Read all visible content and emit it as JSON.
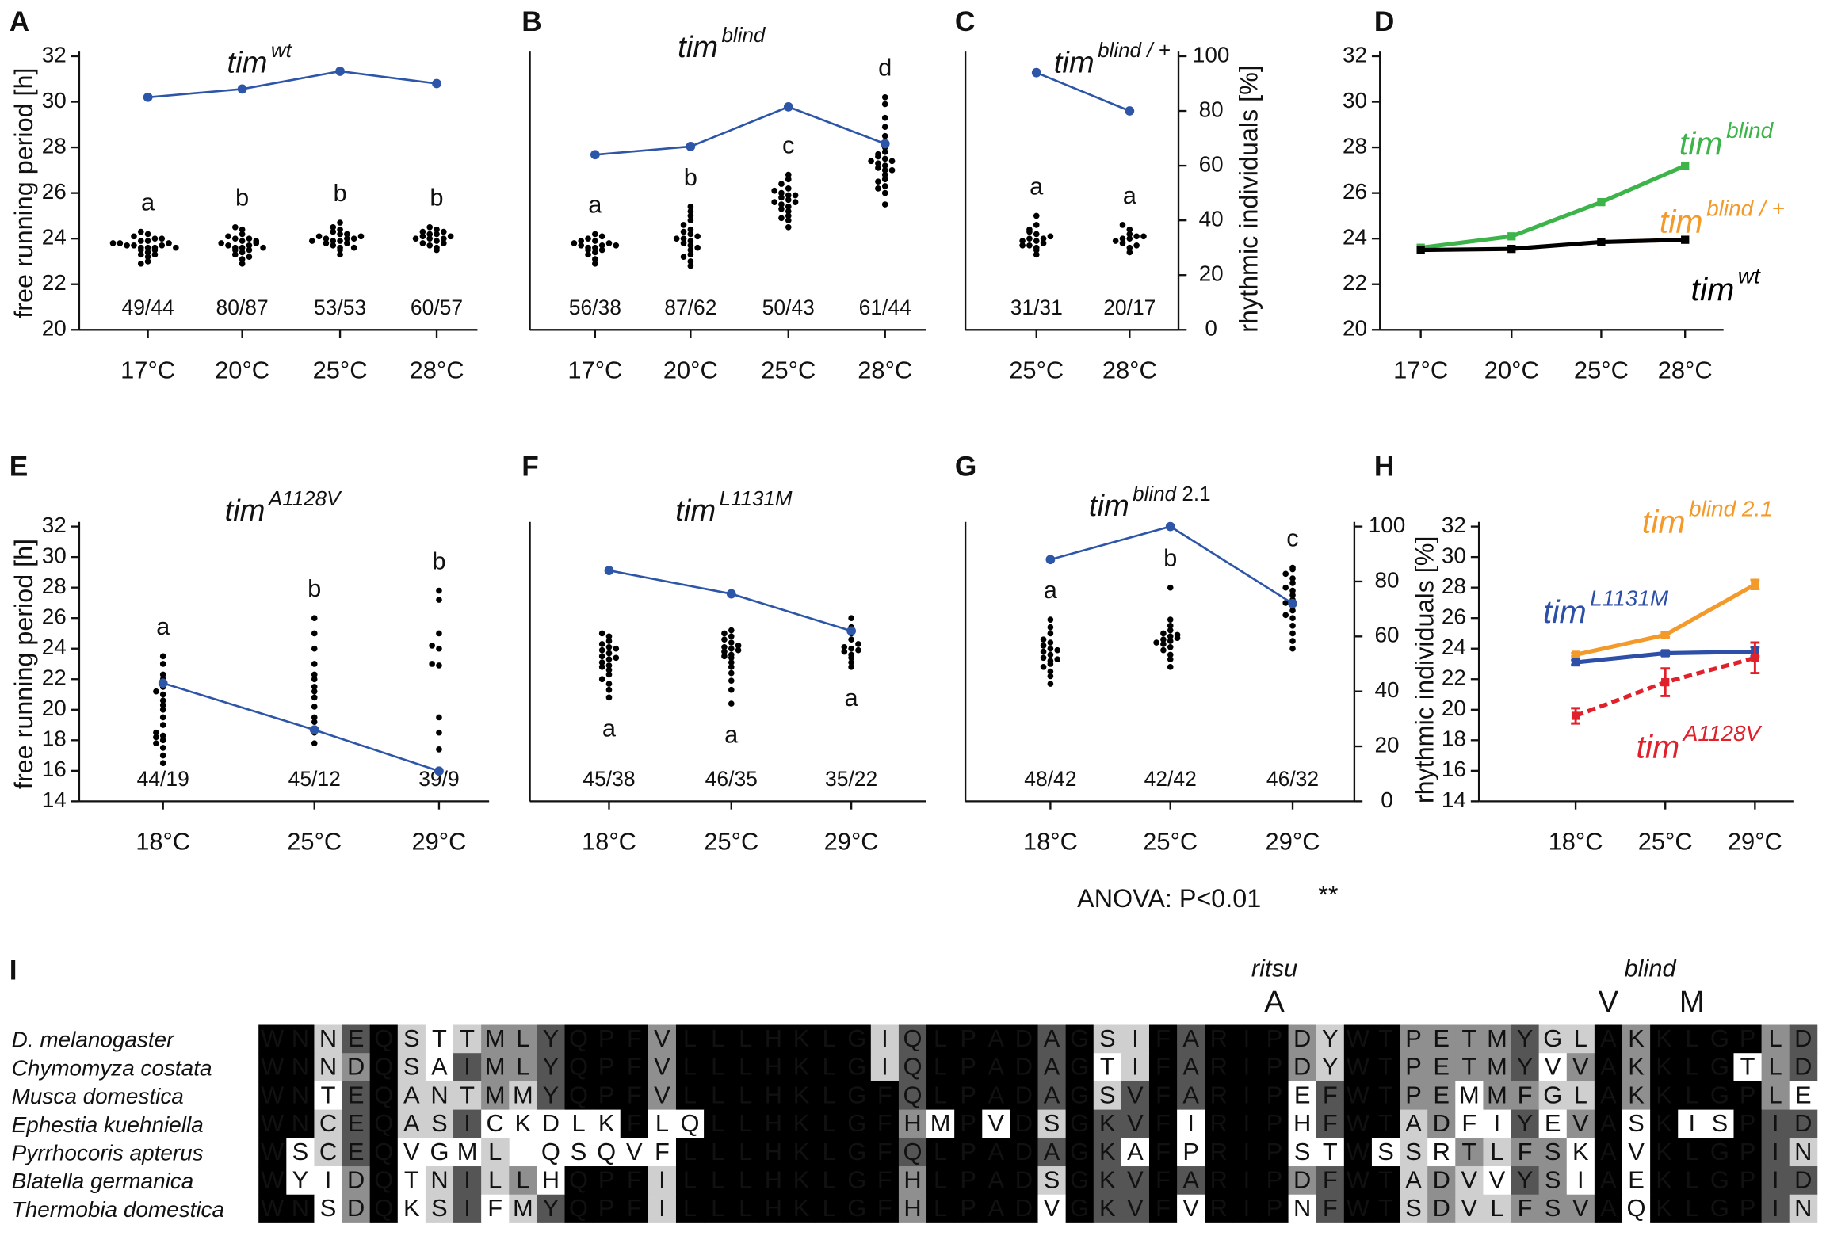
{
  "chart_data": [
    {
      "type": "dotplot",
      "label": "A",
      "title": {
        "base": "tim",
        "sup": "wt"
      },
      "ylabel": "free running period [h]",
      "categories": [
        "17°C",
        "20°C",
        "25°C",
        "28°C"
      ],
      "ylim": [
        20,
        32
      ],
      "yticks": [
        20,
        22,
        24,
        26,
        28,
        30,
        32
      ],
      "y2lim": [
        0,
        100
      ],
      "dot_color": "#000000",
      "letter_color": "#e0202a",
      "groups": [
        [
          23.0,
          23.2,
          23.3,
          23.4,
          23.5,
          23.5,
          23.6,
          23.6,
          23.6,
          23.7,
          23.7,
          23.7,
          23.8,
          23.8,
          23.9,
          23.9,
          24.0,
          24.1,
          24.2,
          24.3,
          22.9,
          23.3,
          23.6,
          23.8,
          24.0
        ],
        [
          22.9,
          23.1,
          23.3,
          23.4,
          23.5,
          23.5,
          23.6,
          23.6,
          23.7,
          23.7,
          23.8,
          23.8,
          23.9,
          24.0,
          24.0,
          24.1,
          24.2,
          24.4,
          24.5,
          23.2,
          23.6,
          23.9
        ],
        [
          23.3,
          23.5,
          23.6,
          23.7,
          23.8,
          23.8,
          23.9,
          23.9,
          24.0,
          24.0,
          24.0,
          24.1,
          24.1,
          24.2,
          24.3,
          24.4,
          24.5,
          24.7,
          23.6,
          23.9,
          24.2
        ],
        [
          23.5,
          23.6,
          23.7,
          23.8,
          23.9,
          24.0,
          24.0,
          24.1,
          24.1,
          24.2,
          24.2,
          24.3,
          24.4,
          24.5,
          23.8,
          24.0,
          24.3
        ]
      ],
      "letters": [
        "a",
        "b",
        "b",
        "b"
      ],
      "counts": [
        "49/44",
        "80/87",
        "53/53",
        "60/57"
      ],
      "rhythmic": {
        "color": "#2d55a8",
        "axis": "y2",
        "values": [
          85,
          88,
          94.5,
          90
        ]
      }
    },
    {
      "type": "dotplot",
      "label": "B",
      "title": {
        "base": "tim",
        "sup": "blind"
      },
      "categories": [
        "17°C",
        "20°C",
        "25°C",
        "28°C"
      ],
      "ylim": [
        20,
        32
      ],
      "y2lim": [
        0,
        100
      ],
      "dot_color": "#000000",
      "letter_color": "#e0202a",
      "groups": [
        [
          22.9,
          23.1,
          23.3,
          23.4,
          23.5,
          23.6,
          23.6,
          23.7,
          23.7,
          23.8,
          23.8,
          23.9,
          24.0,
          24.1,
          24.2,
          23.5,
          23.7,
          23.9
        ],
        [
          22.8,
          23.0,
          23.3,
          23.5,
          23.7,
          23.8,
          23.9,
          24.0,
          24.1,
          24.2,
          24.4,
          24.6,
          24.8,
          25.0,
          25.2,
          23.6,
          24.0,
          24.3,
          23.2,
          25.4
        ],
        [
          24.5,
          24.8,
          25.0,
          25.2,
          25.4,
          25.5,
          25.6,
          25.7,
          25.8,
          25.9,
          26.0,
          26.2,
          26.4,
          26.6,
          26.8,
          25.3,
          25.6,
          25.9,
          26.1,
          24.9
        ],
        [
          25.5,
          26.0,
          26.3,
          26.6,
          26.8,
          27.0,
          27.1,
          27.2,
          27.3,
          27.4,
          27.5,
          27.6,
          27.8,
          28.0,
          28.2,
          28.5,
          28.9,
          29.3,
          29.9,
          30.2,
          26.5,
          27.0,
          27.4,
          27.7,
          26.2
        ]
      ],
      "letters": [
        "a",
        "b",
        "c",
        "d"
      ],
      "counts": [
        "56/38",
        "87/62",
        "50/43",
        "61/44"
      ],
      "rhythmic": {
        "color": "#2d55a8",
        "axis": "y2",
        "values": [
          64,
          67,
          81.5,
          68
        ]
      }
    },
    {
      "type": "dotplot",
      "label": "C",
      "title": {
        "base": "tim",
        "sup": "blind / +"
      },
      "y2label": "rhythmic individuals [%]",
      "categories": [
        "25°C",
        "28°C"
      ],
      "ylim": [
        20,
        32
      ],
      "y2lim": [
        0,
        100
      ],
      "y2ticks": [
        0,
        20,
        40,
        60,
        80,
        100
      ],
      "dot_color": "#000000",
      "letter_color": "#e0202a",
      "groups": [
        [
          23.3,
          23.5,
          23.6,
          23.7,
          23.8,
          23.9,
          24.0,
          24.0,
          24.2,
          24.3,
          24.6,
          25.0,
          23.7,
          23.9,
          24.1,
          24.4
        ],
        [
          23.4,
          23.6,
          23.8,
          24.0,
          24.0,
          24.1,
          24.2,
          24.4,
          24.6,
          23.7,
          23.9,
          24.1
        ]
      ],
      "letters": [
        "a",
        "a"
      ],
      "counts": [
        "31/31",
        "20/17"
      ],
      "rhythmic": {
        "color": "#2d55a8",
        "axis": "y2",
        "values": [
          94,
          80
        ]
      }
    },
    {
      "type": "line",
      "label": "D",
      "categories": [
        "17°C",
        "20°C",
        "25°C",
        "28°C"
      ],
      "ylim": [
        20,
        32
      ],
      "yticks": [
        20,
        22,
        24,
        26,
        28,
        30,
        32
      ],
      "series": [
        {
          "name": "tim",
          "name_sup": "blind",
          "color": "#3cb44a",
          "values": [
            23.6,
            24.1,
            25.6,
            27.2
          ]
        },
        {
          "name": "tim",
          "name_sup": "blind / +",
          "color": "#f39a2a",
          "dash": true,
          "values": [
            null,
            null,
            23.85,
            23.95
          ]
        },
        {
          "name": "tim",
          "name_sup": "wt",
          "color": "#000000",
          "values": [
            23.5,
            23.55,
            23.85,
            23.95
          ]
        }
      ]
    },
    {
      "type": "dotplot",
      "label": "E",
      "title": {
        "base": "tim",
        "sup": "A1128V"
      },
      "ylabel": "free running period [h]",
      "categories": [
        "18°C",
        "25°C",
        "29°C"
      ],
      "ylim": [
        14,
        32
      ],
      "yticks": [
        14,
        16,
        18,
        20,
        22,
        24,
        26,
        28,
        30,
        32
      ],
      "y2lim": [
        0,
        100
      ],
      "dot_color": "#000000",
      "letter_color": "#e0202a",
      "groups": [
        [
          16.5,
          17.0,
          17.5,
          17.8,
          18.0,
          18.2,
          18.3,
          18.5,
          19.0,
          19.5,
          20.0,
          20.3,
          20.6,
          21.0,
          21.2,
          21.5,
          22.0,
          22.3,
          23.0,
          23.5
        ],
        [
          17.8,
          18.5,
          19.2,
          19.5,
          20.2,
          20.8,
          21.2,
          21.5,
          22.0,
          22.3,
          23.0,
          24.0,
          25.0,
          26.0
        ],
        [
          17.4,
          18.5,
          19.5,
          22.9,
          23.0,
          24.0,
          24.2,
          25.0,
          27.2,
          27.8
        ]
      ],
      "letters": [
        "a",
        "b",
        "b"
      ],
      "counts": [
        "44/19",
        "45/12",
        "39/9"
      ],
      "rhythmic": {
        "color": "#2d55a8",
        "axis": "y2",
        "values": [
          43,
          26,
          11
        ]
      }
    },
    {
      "type": "dotplot",
      "label": "F",
      "title": {
        "base": "tim",
        "sup": "L1131M"
      },
      "letter_position": "below",
      "categories": [
        "18°C",
        "25°C",
        "29°C"
      ],
      "ylim": [
        14,
        32
      ],
      "y2lim": [
        0,
        100
      ],
      "dot_color": "#000000",
      "letter_color": "#e0202a",
      "groups": [
        [
          20.8,
          21.3,
          21.7,
          22.0,
          22.3,
          22.6,
          22.9,
          23.1,
          23.3,
          23.5,
          23.7,
          23.9,
          24.1,
          24.3,
          24.5,
          24.8,
          25.0,
          22.8,
          23.4,
          24.0
        ],
        [
          20.4,
          21.3,
          21.9,
          22.4,
          22.8,
          23.1,
          23.4,
          23.6,
          23.8,
          24.0,
          24.1,
          24.2,
          24.4,
          24.6,
          24.8,
          25.0,
          25.2,
          23.5,
          23.9
        ],
        [
          22.8,
          23.1,
          23.4,
          23.6,
          23.8,
          24.0,
          24.1,
          24.3,
          24.6,
          25.0,
          25.4,
          26.0,
          23.9
        ]
      ],
      "letters": [
        "a",
        "a",
        "a"
      ],
      "counts": [
        "45/38",
        "46/35",
        "35/22"
      ],
      "rhythmic": {
        "color": "#2d55a8",
        "axis": "y2",
        "values": [
          84,
          75.5,
          62
        ]
      }
    },
    {
      "type": "dotplot",
      "label": "G",
      "title": {
        "base": "tim",
        "sup": "blind",
        "tail": "2.1"
      },
      "y2label": "rhythmic individuals [%]",
      "categories": [
        "18°C",
        "25°C",
        "29°C"
      ],
      "ylim": [
        14,
        32
      ],
      "y2lim": [
        0,
        100
      ],
      "y2ticks": [
        0,
        20,
        40,
        60,
        80,
        100
      ],
      "dot_color": "#000000",
      "letter_color": "#e0202a",
      "groups": [
        [
          21.7,
          22.2,
          22.5,
          22.8,
          23.0,
          23.2,
          23.4,
          23.6,
          23.8,
          24.0,
          24.2,
          24.4,
          24.6,
          25.0,
          25.4,
          25.9,
          23.3,
          23.9
        ],
        [
          22.8,
          23.3,
          23.6,
          23.9,
          24.1,
          24.3,
          24.5,
          24.6,
          24.7,
          24.8,
          25.0,
          25.2,
          25.5,
          25.9,
          28.0,
          24.4,
          24.9
        ],
        [
          24.0,
          24.5,
          25.0,
          25.5,
          26.0,
          26.5,
          26.9,
          27.2,
          27.5,
          27.8,
          28.0,
          28.3,
          28.6,
          28.9,
          29.2,
          29.3,
          26.2,
          27.0
        ]
      ],
      "letters": [
        "a",
        "b",
        "c"
      ],
      "counts": [
        "48/42",
        "42/42",
        "46/32"
      ],
      "rhythmic": {
        "color": "#2d55a8",
        "axis": "y2",
        "values": [
          88,
          100,
          72
        ]
      }
    },
    {
      "type": "line",
      "label": "H",
      "categories": [
        "18°C",
        "25°C",
        "29°C"
      ],
      "ylim": [
        14,
        32
      ],
      "yticks": [
        14,
        16,
        18,
        20,
        22,
        24,
        26,
        28,
        30,
        32
      ],
      "series": [
        {
          "name": "tim",
          "name_sup": "blind 2.1",
          "color": "#f39a2a",
          "values": [
            23.6,
            24.9,
            28.2
          ],
          "errors": [
            0.1,
            0.15,
            0.3
          ]
        },
        {
          "name": "tim",
          "name_sup": "L1131M",
          "color": "#2d4fa8",
          "values": [
            23.1,
            23.7,
            23.8
          ],
          "errors": [
            0.15,
            0.15,
            0.3
          ]
        },
        {
          "name": "tim",
          "name_sup": "A1128V",
          "color": "#e0202a",
          "dash": true,
          "values": [
            19.6,
            21.8,
            23.4
          ],
          "errors": [
            0.5,
            0.9,
            1.0
          ]
        }
      ]
    }
  ],
  "annotation": {
    "text": "ANOVA: P<0.01",
    "stars": "**",
    "color": "#e0202a"
  },
  "alignment": {
    "label": "I",
    "rows": [
      {
        "name": "D. melanogaster",
        "seq": "WNNEQSTTMLYQPFVLLLHKLGIQLPADAGSIFARIPDYWTPETMYGLAKKLGPLD"
      },
      {
        "name": "Chymomyza costata",
        "seq": "WNNDQSAIMLYQPFVLLLHKLGIQLPADAGTIFARIPDYWTPETMYVVAKKLGTLD"
      },
      {
        "name": "Musca domestica",
        "seq": "WNTEQANTMMYQPFVLLLHKLGFQLPADAGSVFARIPEFWTPEMMFGLAKKLGPLE"
      },
      {
        "name": "Ephestia kuehniella",
        "seq": "WNCEQASICKDLKFLQLLHKLGFHMPVDSGKVFIRIPHFWTADFIYEVASKISPID"
      },
      {
        "name": "Pyrrhocoris apterus",
        "seq": "WSCEQVGML QSQVFLLLHKLGFQLPADAGKAFPRIPSTWSSRTLFSKAVKLGPIN"
      },
      {
        "name": "Blatella germanica",
        "seq": "WYIDQTNILLHQPFILLLHKLGFHLPADSGKVFARIPDFWTADVVYSIAEKLGPID"
      },
      {
        "name": "Thermobia domestica",
        "seq": "WNSDQKSIFMYQPFILLLHKLGFHLPADVGKVFVRIPNFWTSDVLFSVAQKLGPIN"
      }
    ],
    "mutations": [
      {
        "title": "ritsu",
        "residues": [
          {
            "column": 37,
            "letter": "A"
          }
        ]
      },
      {
        "title": "blind",
        "residues": [
          {
            "column": 49,
            "letter": "V"
          },
          {
            "column": 52,
            "letter": "M"
          }
        ]
      }
    ]
  }
}
